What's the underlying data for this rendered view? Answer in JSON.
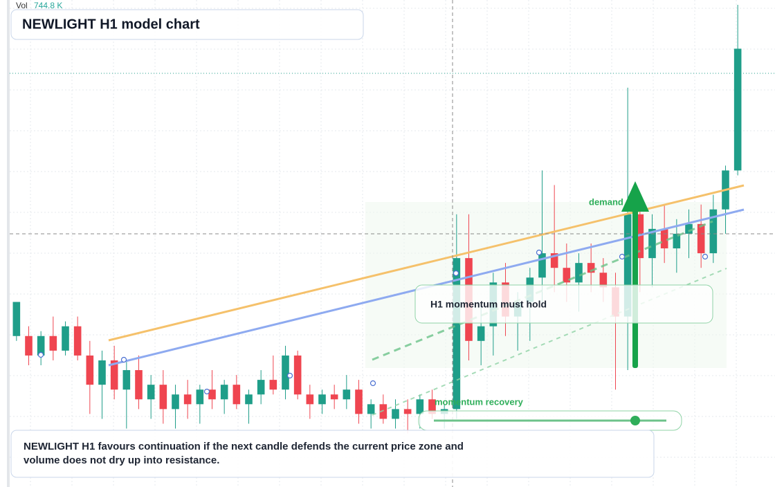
{
  "chart_data": {
    "type": "candlestick",
    "title": "NEWLIGHT H1 model chart",
    "volume_label": "Vol",
    "volume_value": "744.8 K",
    "note": "NEWLIGHT H1 favours continuation if the next candle defends the current price zone and volume does not dry up into resistance.",
    "annotations": [
      "demand side",
      "H1 momentum must hold",
      "momentum recovery"
    ],
    "up_color": "#1f9e89",
    "down_color": "#ef4550",
    "ylim": [
      0,
      100
    ],
    "open": [
      31,
      31,
      27,
      31,
      28,
      33,
      27,
      21,
      26,
      20,
      24,
      18,
      21,
      16,
      19,
      17,
      20,
      18,
      21,
      17,
      19,
      22,
      20,
      27,
      19,
      17,
      19,
      18,
      20,
      15,
      17,
      14,
      16,
      15,
      18,
      15,
      16,
      47,
      30,
      33,
      42,
      35,
      38,
      43,
      48,
      45,
      42,
      46,
      44,
      41,
      35,
      56,
      47,
      53,
      49,
      52,
      54,
      48,
      57,
      65
    ],
    "high": [
      38,
      33,
      32,
      35,
      34,
      35,
      30,
      28,
      29,
      26,
      27,
      23,
      24,
      21,
      22,
      21,
      24,
      22,
      23,
      20,
      24,
      27,
      29,
      28,
      21,
      20,
      21,
      23,
      22,
      18,
      19,
      18,
      18,
      19,
      20,
      17,
      56,
      56,
      38,
      44,
      46,
      40,
      45,
      65,
      62,
      50,
      48,
      50,
      47,
      44,
      82,
      60,
      56,
      58,
      55,
      57,
      58,
      60,
      66,
      99
    ],
    "low": [
      30,
      25,
      25,
      26,
      27,
      26,
      15,
      14,
      18,
      12,
      16,
      14,
      13,
      12,
      14,
      13,
      16,
      15,
      16,
      13,
      17,
      19,
      18,
      18,
      14,
      15,
      16,
      16,
      13,
      12,
      13,
      12,
      11,
      12,
      14,
      12,
      14,
      26,
      25,
      27,
      31,
      28,
      30,
      38,
      40,
      38,
      36,
      40,
      38,
      20,
      24,
      40,
      41,
      46,
      44,
      47,
      45,
      46,
      52,
      64
    ],
    "close": [
      38,
      27,
      31,
      28,
      33,
      27,
      21,
      26,
      20,
      24,
      18,
      21,
      16,
      19,
      17,
      20,
      18,
      21,
      17,
      19,
      22,
      20,
      27,
      19,
      17,
      19,
      18,
      20,
      15,
      17,
      14,
      16,
      15,
      18,
      15,
      16,
      47,
      30,
      33,
      42,
      35,
      38,
      43,
      48,
      45,
      42,
      46,
      44,
      41,
      35,
      56,
      47,
      53,
      49,
      52,
      54,
      48,
      57,
      65,
      90
    ]
  }
}
